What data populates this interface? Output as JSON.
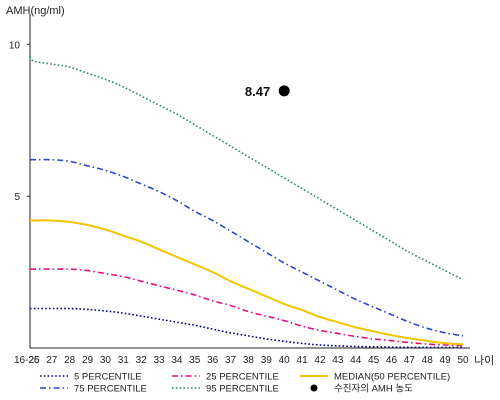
{
  "chart_data": {
    "type": "line",
    "ylabel": "AMH(ng/ml)",
    "xlabel": "나이",
    "x_ticks": [
      "16-25",
      "26",
      "27",
      "28",
      "29",
      "30",
      "31",
      "32",
      "33",
      "34",
      "35",
      "36",
      "37",
      "38",
      "39",
      "40",
      "41",
      "42",
      "43",
      "44",
      "45",
      "46",
      "47",
      "48",
      "49",
      "50"
    ],
    "y_ticks": [
      "5",
      "10"
    ],
    "ylim": [
      0,
      11
    ],
    "grid": false,
    "legend_position": "bottom",
    "series": [
      {
        "name": "5 PERCENTILE",
        "color": "#000080",
        "style": "dotted",
        "values": [
          1.3,
          1.3,
          1.3,
          1.3,
          1.27,
          1.22,
          1.15,
          1.05,
          0.95,
          0.85,
          0.75,
          0.62,
          0.5,
          0.4,
          0.3,
          0.22,
          0.15,
          0.1,
          0.07,
          0.05,
          0.04,
          0.03,
          0.02,
          0.02,
          0.02,
          0.02
        ]
      },
      {
        "name": "25 PERCENTILE",
        "color": "#e0157f",
        "style": "dashdot",
        "values": [
          2.6,
          2.6,
          2.6,
          2.6,
          2.55,
          2.45,
          2.35,
          2.2,
          2.05,
          1.9,
          1.75,
          1.55,
          1.4,
          1.2,
          1.05,
          0.9,
          0.72,
          0.58,
          0.48,
          0.38,
          0.3,
          0.24,
          0.18,
          0.13,
          0.1,
          0.08
        ]
      },
      {
        "name": "MEDIAN(50 PERCENTILE)",
        "color": "#f2c500",
        "style": "solid",
        "values": [
          4.2,
          4.2,
          4.2,
          4.15,
          4.05,
          3.9,
          3.7,
          3.5,
          3.25,
          3.0,
          2.75,
          2.5,
          2.2,
          1.95,
          1.7,
          1.45,
          1.25,
          1.02,
          0.85,
          0.68,
          0.55,
          0.42,
          0.32,
          0.23,
          0.16,
          0.12
        ]
      },
      {
        "name": "75 PERCENTILE",
        "color": "#2c46c9",
        "style": "dashdot",
        "values": [
          6.2,
          6.2,
          6.2,
          6.15,
          6.0,
          5.85,
          5.65,
          5.4,
          5.15,
          4.85,
          4.5,
          4.2,
          3.85,
          3.5,
          3.15,
          2.8,
          2.5,
          2.2,
          1.9,
          1.6,
          1.35,
          1.1,
          0.85,
          0.65,
          0.5,
          0.4
        ]
      },
      {
        "name": "95 PERCENTILE",
        "color": "#2f8a5a",
        "style": "dotted",
        "values": [
          9.6,
          9.45,
          9.35,
          9.25,
          9.05,
          8.85,
          8.6,
          8.3,
          8.0,
          7.7,
          7.35,
          7.0,
          6.65,
          6.3,
          5.95,
          5.6,
          5.25,
          4.9,
          4.55,
          4.2,
          3.85,
          3.5,
          3.15,
          2.85,
          2.55,
          2.25
        ]
      }
    ],
    "patient_point": {
      "name": "수진자의 AMH 농도",
      "x": "40",
      "y": 8.47,
      "label": "8.47",
      "color": "#000000"
    }
  }
}
